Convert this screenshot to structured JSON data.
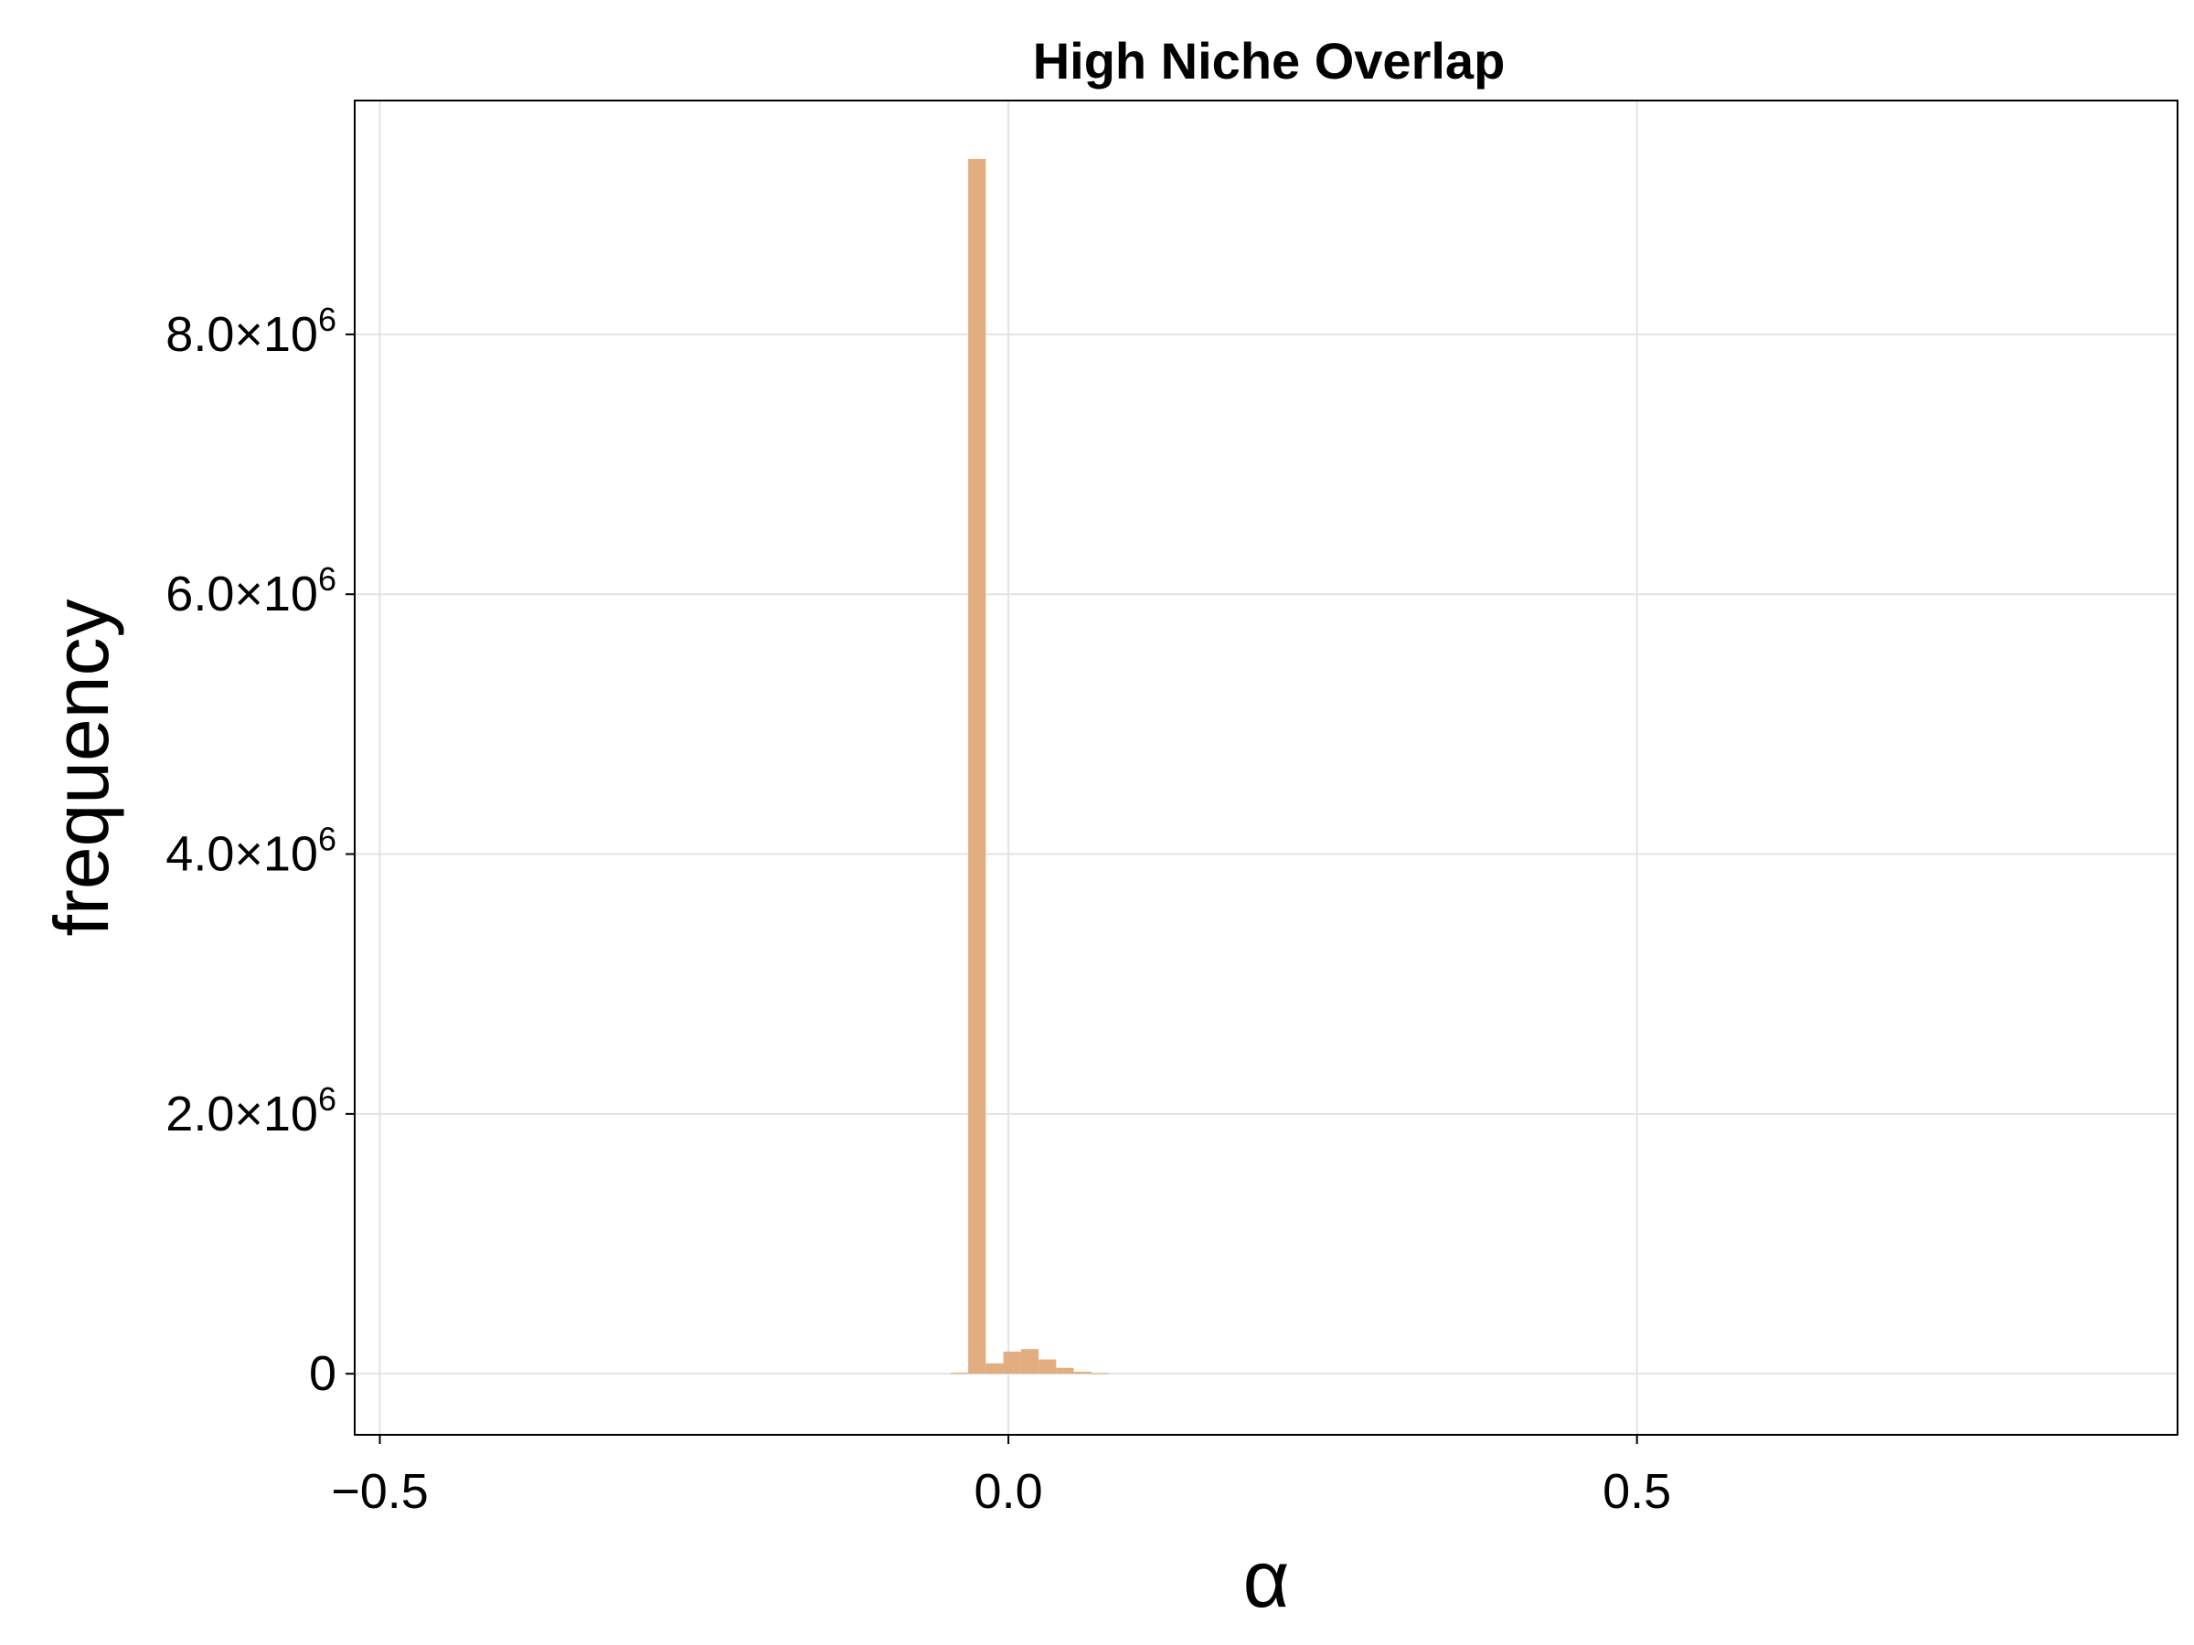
{
  "chart_data": {
    "type": "bar",
    "title": "High Niche Overlap",
    "xlabel": "α",
    "ylabel": "frequency",
    "xlim": [
      -0.52,
      0.93
    ],
    "ylim": [
      -470000,
      9800000
    ],
    "grid": true,
    "legend": "none",
    "bar_color": "#e2ad80",
    "x_ticks": [
      {
        "value": -0.5,
        "label": "−0.5"
      },
      {
        "value": 0.0,
        "label": "0.0"
      },
      {
        "value": 0.5,
        "label": "0.5"
      }
    ],
    "y_ticks": [
      {
        "value": 0,
        "label": "0",
        "sup": ""
      },
      {
        "value": 2000000,
        "label": "2.0×10",
        "sup": "6"
      },
      {
        "value": 4000000,
        "label": "4.0×10",
        "sup": "6"
      },
      {
        "value": 6000000,
        "label": "6.0×10",
        "sup": "6"
      },
      {
        "value": 8000000,
        "label": "8.0×10",
        "sup": "6"
      }
    ],
    "bin_width": 0.014,
    "bins": [
      {
        "x0": -0.046,
        "value": 8000
      },
      {
        "x0": -0.032,
        "value": 9350000
      },
      {
        "x0": -0.018,
        "value": 80000
      },
      {
        "x0": -0.004,
        "value": 170000
      },
      {
        "x0": 0.01,
        "value": 190000
      },
      {
        "x0": 0.024,
        "value": 110000
      },
      {
        "x0": 0.038,
        "value": 45000
      },
      {
        "x0": 0.052,
        "value": 15000
      },
      {
        "x0": 0.066,
        "value": 5000
      }
    ]
  }
}
